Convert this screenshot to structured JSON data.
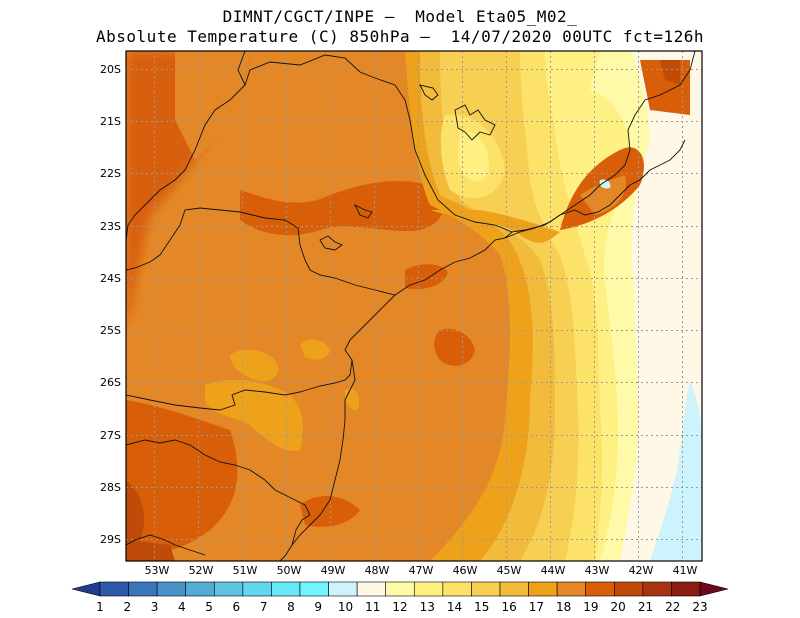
{
  "title": {
    "line1": "DIMNT/CGCT/INPE –  Model Eta05_M02_",
    "line2": "Absolute Temperature (C) 850hPa –  14/07/2020 00UTC fct=126h"
  },
  "map": {
    "lat_labels": [
      "20S",
      "21S",
      "22S",
      "23S",
      "24S",
      "25S",
      "26S",
      "27S",
      "28S",
      "29S"
    ],
    "lon_labels": [
      "53W",
      "52W",
      "51W",
      "50W",
      "49W",
      "48W",
      "47W",
      "46W",
      "45W",
      "44W",
      "43W",
      "42W",
      "41W"
    ],
    "lat_range": [
      -29.4,
      -19.9
    ],
    "lon_range": [
      -53.7,
      -40.7
    ],
    "grid": "dotted"
  },
  "colorbar": {
    "labels": [
      "1",
      "2",
      "3",
      "4",
      "5",
      "6",
      "7",
      "8",
      "9",
      "10",
      "11",
      "12",
      "13",
      "14",
      "15",
      "16",
      "17",
      "18",
      "19",
      "20",
      "21",
      "22",
      "23"
    ],
    "colors": [
      "#1f3c8f",
      "#2c5aa8",
      "#3a77ba",
      "#4a93c8",
      "#54acd6",
      "#5fc3e2",
      "#62d6ee",
      "#68e7f6",
      "#6ff5fb",
      "#cdf3fc",
      "#fff8e6",
      "#fffaa8",
      "#fff084",
      "#fde26a",
      "#f7cf53",
      "#f3bb3c",
      "#eea11a",
      "#e48827",
      "#d85e07",
      "#c04a08",
      "#a83512",
      "#8a1d12",
      "#6b0a1b"
    ]
  }
}
